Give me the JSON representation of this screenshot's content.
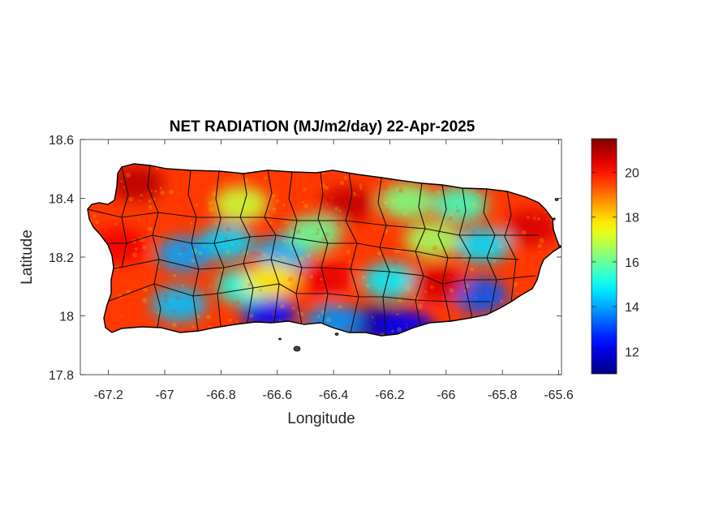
{
  "chart_data": {
    "type": "heatmap",
    "title": "NET RADIATION (MJ/m2/day) 22-Apr-2025",
    "xlabel": "Longitude",
    "ylabel": "Latitude",
    "xlim": [
      -67.3,
      -65.59
    ],
    "ylim": [
      17.8,
      18.6
    ],
    "x_ticks": [
      -67.2,
      -67,
      -66.8,
      -66.6,
      -66.4,
      -66.2,
      -66,
      -65.8,
      -65.6
    ],
    "x_tick_labels": [
      "-67.2",
      "-67",
      "-66.8",
      "-66.6",
      "-66.4",
      "-66.2",
      "-66",
      "-65.8",
      "-65.6"
    ],
    "y_ticks": [
      17.8,
      18,
      18.2,
      18.4,
      18.6
    ],
    "y_tick_labels": [
      "17.8",
      "18",
      "18.2",
      "18.4",
      "18.6"
    ],
    "grid": false,
    "colormap": "jet",
    "colorbar": {
      "position": "right",
      "range": [
        11,
        21.5
      ],
      "ticks": [
        12,
        14,
        16,
        18,
        20
      ],
      "tick_labels": [
        "12",
        "14",
        "16",
        "18",
        "20"
      ]
    },
    "base_value": 19.6,
    "regions": [
      {
        "lon": -66.25,
        "lat": 17.97,
        "value": 11.6
      },
      {
        "lon": -66.14,
        "lat": 17.96,
        "value": 12.2
      },
      {
        "lon": -66.63,
        "lat": 18.01,
        "value": 12.5
      },
      {
        "lon": -66.4,
        "lat": 17.98,
        "value": 13.8
      },
      {
        "lon": -65.88,
        "lat": 18.07,
        "value": 13.2
      },
      {
        "lon": -66.2,
        "lat": 18.12,
        "value": 14.8
      },
      {
        "lon": -66.58,
        "lat": 18.21,
        "value": 14.2
      },
      {
        "lon": -66.78,
        "lat": 18.25,
        "value": 14.5
      },
      {
        "lon": -66.93,
        "lat": 18.21,
        "value": 14.0
      },
      {
        "lon": -66.95,
        "lat": 18.04,
        "value": 14.3
      },
      {
        "lon": -66.72,
        "lat": 18.1,
        "value": 15.2
      },
      {
        "lon": -65.87,
        "lat": 18.24,
        "value": 14.6
      },
      {
        "lon": -65.95,
        "lat": 18.38,
        "value": 15.6
      },
      {
        "lon": -66.14,
        "lat": 18.39,
        "value": 16.2
      },
      {
        "lon": -66.47,
        "lat": 18.28,
        "value": 16.0
      },
      {
        "lon": -66.73,
        "lat": 18.38,
        "value": 17.0
      },
      {
        "lon": -66.05,
        "lat": 18.26,
        "value": 16.6
      },
      {
        "lon": -66.35,
        "lat": 18.38,
        "value": 20.8
      },
      {
        "lon": -66.43,
        "lat": 18.13,
        "value": 20.4
      },
      {
        "lon": -66.03,
        "lat": 18.11,
        "value": 20.6
      },
      {
        "lon": -67.1,
        "lat": 18.45,
        "value": 20.9
      },
      {
        "lon": -67.16,
        "lat": 18.24,
        "value": 20.3
      },
      {
        "lon": -65.7,
        "lat": 18.3,
        "value": 20.6
      },
      {
        "lon": -66.62,
        "lat": 18.12,
        "value": 17.8
      }
    ]
  },
  "colors": {
    "outline": "#000000",
    "axis": "#262626",
    "background": "#ffffff"
  }
}
